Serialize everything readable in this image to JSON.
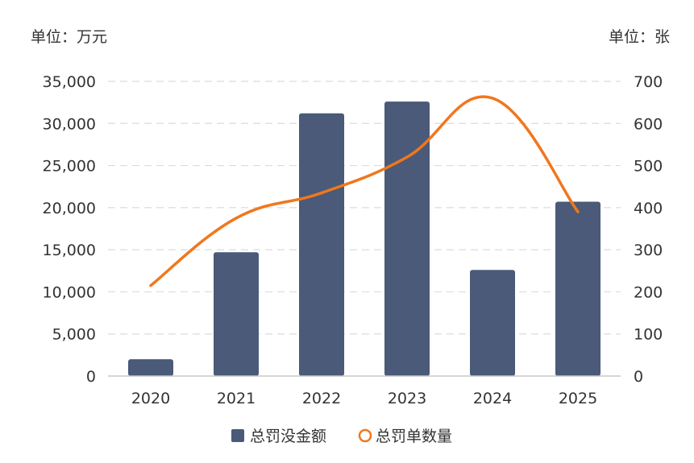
{
  "chart_data": {
    "type": "bar",
    "title": "",
    "categories": [
      "2020",
      "2021",
      "2022",
      "2023",
      "2024",
      "2025"
    ],
    "left_axis": {
      "unit_label": "单位：万元",
      "ylim": [
        0,
        35000
      ],
      "ticks": [
        "0",
        "5,000",
        "10,000",
        "15,000",
        "20,000",
        "25,000",
        "30,000",
        "35,000"
      ]
    },
    "right_axis": {
      "unit_label": "单位：张",
      "ylim": [
        0,
        700
      ],
      "ticks": [
        "0",
        "100",
        "200",
        "300",
        "400",
        "500",
        "600",
        "700"
      ]
    },
    "series": [
      {
        "name": "总罚没金额",
        "type": "bar",
        "axis": "left",
        "values": [
          2000,
          14700,
          31200,
          32600,
          12600,
          20700
        ],
        "color": "#4a5a78"
      },
      {
        "name": "总罚单数量",
        "type": "line",
        "axis": "right",
        "smooth": true,
        "values": [
          215,
          375,
          435,
          520,
          660,
          390
        ],
        "color": "#f0771d"
      }
    ],
    "grid": true,
    "legend_position": "bottom"
  },
  "legend": {
    "bar_label": "总罚没金额",
    "line_label": "总罚单数量"
  }
}
